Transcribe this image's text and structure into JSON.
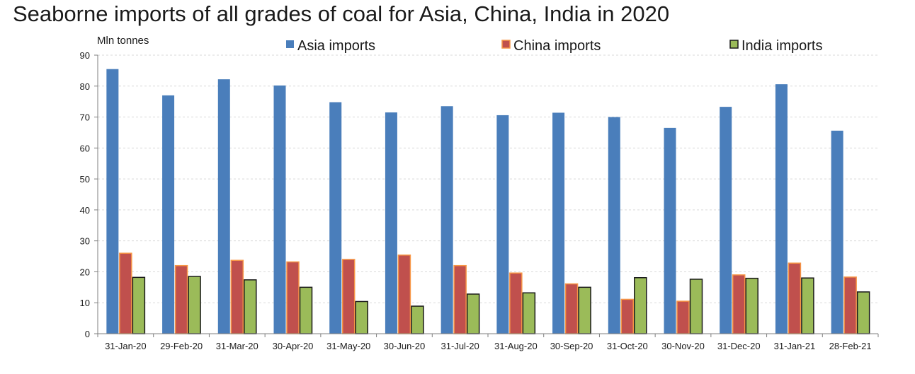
{
  "chart_data": {
    "type": "bar",
    "title": "Seaborne imports of all grades of coal for Asia, China, India in 2020",
    "ylabel": "Mln tonnes",
    "xlabel": "",
    "ylim": [
      0,
      90
    ],
    "yticks": [
      0,
      10,
      20,
      30,
      40,
      50,
      60,
      70,
      80,
      90
    ],
    "grid": true,
    "legend_position": "top",
    "categories": [
      "31-Jan-20",
      "29-Feb-20",
      "31-Mar-20",
      "30-Apr-20",
      "31-May-20",
      "30-Jun-20",
      "31-Jul-20",
      "31-Aug-20",
      "30-Sep-20",
      "31-Oct-20",
      "30-Nov-20",
      "31-Dec-20",
      "31-Jan-21",
      "28-Feb-21"
    ],
    "series": [
      {
        "name": "Asia imports",
        "color": "#4a7ebb",
        "stroke": "#4a7ebb",
        "values": [
          85.5,
          77,
          82.2,
          80.2,
          74.8,
          71.5,
          73.5,
          70.6,
          71.4,
          70,
          66.5,
          73.3,
          80.6,
          65.6
        ]
      },
      {
        "name": "China imports",
        "color": "#c0504d",
        "stroke": "#f79646",
        "values": [
          26,
          22,
          23.7,
          23.2,
          24,
          25.4,
          22,
          19.6,
          16.1,
          11.1,
          10.5,
          19,
          22.8,
          18.3
        ]
      },
      {
        "name": "India imports",
        "color": "#9bbb59",
        "stroke": "#1a1a1a",
        "values": [
          18.2,
          18.5,
          17.4,
          15,
          10.4,
          8.9,
          12.8,
          13.2,
          15,
          18.1,
          17.6,
          17.9,
          18,
          13.5
        ]
      }
    ]
  }
}
